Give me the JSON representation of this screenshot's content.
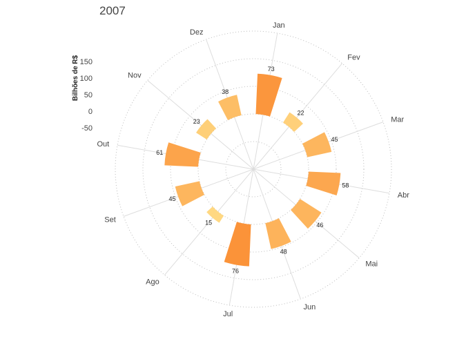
{
  "chart_data": {
    "type": "bar",
    "subtype": "polar-bar",
    "title": "2007",
    "ylabel": "Bilhões de R$",
    "categories": [
      "Jan",
      "Fev",
      "Mar",
      "Abr",
      "Mai",
      "Jun",
      "Jul",
      "Ago",
      "Set",
      "Out",
      "Nov",
      "Dez"
    ],
    "values": [
      73,
      22,
      45,
      58,
      46,
      48,
      76,
      15,
      45,
      61,
      23,
      38
    ],
    "radial_range": [
      -100,
      150
    ],
    "radial_ticks": [
      "-50",
      "0",
      "50",
      "100",
      "150"
    ],
    "grid": true,
    "colors": {
      "low": "#ffd882",
      "high": "#fb9339"
    }
  }
}
